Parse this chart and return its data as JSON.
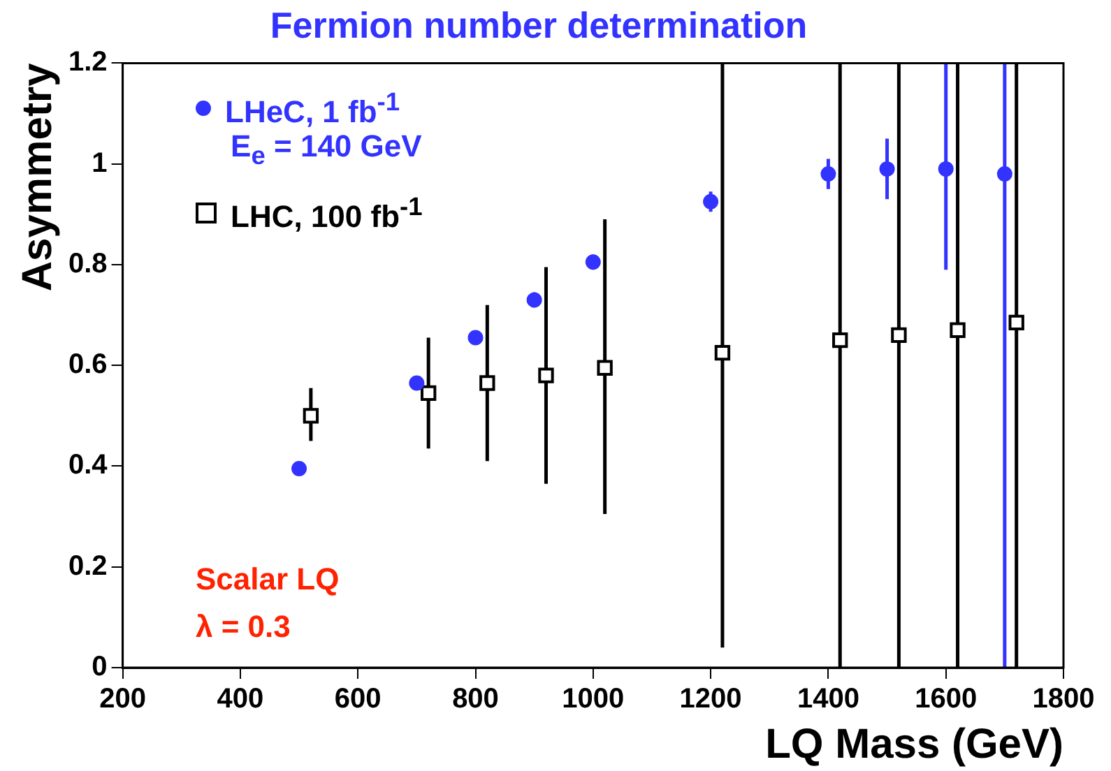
{
  "chart_data": {
    "type": "scatter",
    "title": "Fermion number determination",
    "xlabel": "LQ Mass (GeV)",
    "ylabel": "Asymmetry",
    "xlim": [
      200,
      1800
    ],
    "xticks": [
      200,
      400,
      600,
      800,
      1000,
      1200,
      1400,
      1600,
      1800
    ],
    "ylim": [
      0,
      1.2
    ],
    "yticks": [
      0,
      0.2,
      0.4,
      0.6,
      0.8,
      1,
      1.2
    ],
    "grid": false,
    "legend": "top left",
    "series": [
      {
        "name": "LHeC, 1 fb$^{-1}$",
        "color": "#3333ff",
        "marker": "circle",
        "x": [
          500,
          700,
          800,
          900,
          1000,
          1200,
          1400,
          1500,
          1600,
          1700
        ],
        "values": [
          0.395,
          0.565,
          0.655,
          0.73,
          0.805,
          0.925,
          0.98,
          0.99,
          0.99,
          0.98
        ],
        "errors": [
          null,
          null,
          null,
          0.015,
          0.015,
          [
            0.905,
            0.945
          ],
          [
            0.95,
            1.01
          ],
          [
            0.93,
            1.05
          ],
          [
            0.79,
            1.2
          ],
          [
            0,
            1.2
          ]
        ]
      },
      {
        "name": "LHC, 100 fb$^{-1}$",
        "color": "#000000",
        "marker": "square",
        "x": [
          520,
          720,
          820,
          920,
          1020,
          1220,
          1420,
          1520,
          1620,
          1720
        ],
        "values": [
          0.5,
          0.545,
          0.565,
          0.58,
          0.595,
          0.625,
          0.65,
          0.66,
          0.67,
          0.685
        ],
        "errors": [
          [
            0.45,
            0.555
          ],
          [
            0.435,
            0.655
          ],
          [
            0.41,
            0.72
          ],
          [
            0.365,
            0.795
          ],
          [
            0.305,
            0.89
          ],
          [
            0.04,
            1.2
          ],
          [
            0,
            1.2
          ],
          [
            0,
            1.2
          ],
          [
            0,
            1.2
          ],
          [
            0,
            1.2
          ]
        ]
      }
    ],
    "annotations": [
      "E$_{e}$ = 140 GeV",
      "Scalar LQ",
      "λ = 0.3"
    ]
  }
}
